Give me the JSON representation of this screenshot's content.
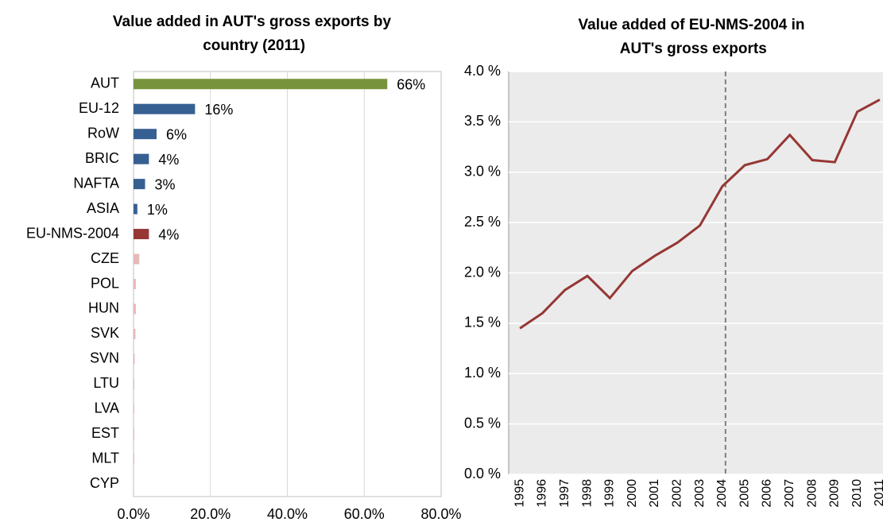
{
  "chart_data": [
    {
      "type": "hbar",
      "title": "Value added in AUT's gross exports by country  (2011)",
      "categories": [
        "AUT",
        "EU-12",
        "RoW",
        "BRIC",
        "NAFTA",
        "ASIA",
        "EU-NMS-2004",
        "CZE",
        "POL",
        "HUN",
        "SVK",
        "SVN",
        "LTU",
        "LVA",
        "EST",
        "MLT",
        "CYP"
      ],
      "values": [
        66,
        16,
        6,
        4,
        3,
        1,
        4,
        1.5,
        0.6,
        0.6,
        0.5,
        0.3,
        0.2,
        0.2,
        0.2,
        0.2,
        0.1
      ],
      "value_labels": [
        "66%",
        "16%",
        "6%",
        "4%",
        "3%",
        "1%",
        "4%",
        null,
        null,
        null,
        null,
        null,
        null,
        null,
        null,
        null,
        null
      ],
      "colors": [
        "#77933c",
        "#376092",
        "#376092",
        "#376092",
        "#376092",
        "#376092",
        "#953735",
        "#e6b9b8",
        "#e6b9b8",
        "#e6b9b8",
        "#e6b9b8",
        "#e6b9b8",
        "#e6b9b8",
        "#e6b9b8",
        "#e6b9b8",
        "#e6b9b8",
        "#e6b9b8"
      ],
      "xlim": [
        0,
        80
      ],
      "xticks": [
        {
          "value": 0,
          "label": "0.0%"
        },
        {
          "value": 20,
          "label": "20.0%"
        },
        {
          "value": 40,
          "label": "40.0%"
        },
        {
          "value": 60,
          "label": "60.0%"
        },
        {
          "value": 80,
          "label": "80.0%"
        }
      ],
      "grid": true
    },
    {
      "type": "line",
      "title": "Value added of EU-NMS-2004 in AUT's gross exports",
      "categories": [
        "1995",
        "1996",
        "1997",
        "1998",
        "1999",
        "2000",
        "2001",
        "2002",
        "2003",
        "2004",
        "2005",
        "2006",
        "2007",
        "2008",
        "2009",
        "2010",
        "2011"
      ],
      "series": [
        {
          "name": "EU-NMS-2004",
          "color": "#953735",
          "values": [
            1.45,
            1.6,
            1.83,
            1.97,
            1.75,
            2.02,
            2.17,
            2.3,
            2.47,
            2.86,
            3.07,
            3.13,
            3.37,
            3.12,
            3.1,
            3.6,
            3.72
          ]
        }
      ],
      "ylim": [
        0,
        4
      ],
      "yticks": [
        {
          "value": 0,
          "label": "0.0 %"
        },
        {
          "value": 0.5,
          "label": "0.5 %"
        },
        {
          "value": 1,
          "label": "1.0 %"
        },
        {
          "value": 1.5,
          "label": "1.5 %"
        },
        {
          "value": 2,
          "label": "2.0 %"
        },
        {
          "value": 2.5,
          "label": "2.5 %"
        },
        {
          "value": 3,
          "label": "3.0 %"
        },
        {
          "value": 3.5,
          "label": "3.5 %"
        },
        {
          "value": 4,
          "label": "4.0 %"
        }
      ],
      "grid": true
    }
  ]
}
